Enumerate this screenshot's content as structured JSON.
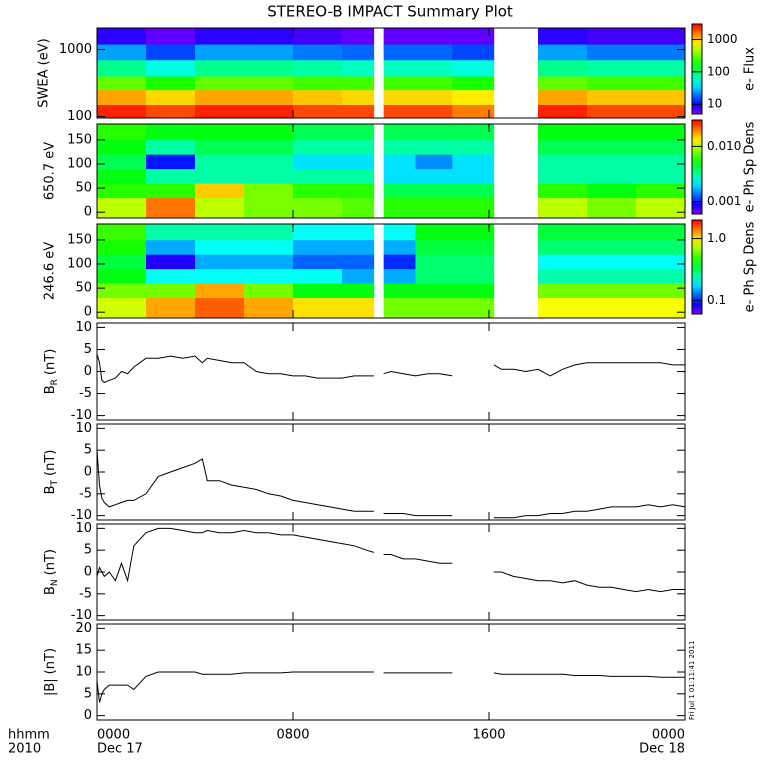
{
  "chart_data": {
    "title": "STEREO-B IMPACT Summary Plot",
    "xlim": [
      0,
      24
    ],
    "xticks": [
      {
        "value": 0,
        "label": "0000"
      },
      {
        "value": 8,
        "label": "0800"
      },
      {
        "value": 16,
        "label": "1600"
      },
      {
        "value": 24,
        "label": "0000"
      }
    ],
    "dates": [
      {
        "value": 0,
        "label": "Dec 17"
      },
      {
        "value": 24,
        "label": "Dec 18"
      }
    ],
    "time_unit": "hhmm",
    "year": "2010",
    "time_bins": [
      0,
      2,
      4,
      6,
      8,
      10,
      11.3,
      11.7,
      13,
      14.5,
      16.2,
      18,
      20,
      22,
      24
    ],
    "x": [
      0,
      0.1,
      0.2,
      0.3,
      0.5,
      0.75,
      1,
      1.25,
      1.5,
      2,
      2.5,
      3,
      3.5,
      4,
      4.3,
      4.5,
      5,
      5.5,
      6,
      6.5,
      7,
      7.5,
      8,
      8.5,
      9,
      9.5,
      10,
      10.5,
      11,
      11.3,
      11.5,
      11.7,
      12,
      12.5,
      13,
      13.5,
      14,
      14.5,
      15.3,
      16.2,
      16.5,
      17,
      17.5,
      18,
      18.5,
      19,
      19.5,
      20,
      20.5,
      21,
      21.5,
      22,
      22.5,
      23,
      23.5,
      24
    ],
    "panels": [
      {
        "type": "heatmap",
        "ylabel": "SWEA (eV)",
        "log": true,
        "ylim": [
          95,
          2100
        ],
        "yticks": [
          100,
          1000
        ],
        "y_bins": [
          95,
          150,
          250,
          400,
          700,
          1200,
          2100
        ],
        "zlabel": "e- Flux",
        "zlim": [
          5,
          3000
        ],
        "zticks": [
          10,
          100,
          1000
        ],
        "z": [
          [
            2500,
            2000,
            2500,
            2500,
            2000,
            2000,
            null,
            2000,
            2000,
            1500,
            null,
            2500,
            2000,
            2000
          ],
          [
            1200,
            900,
            1200,
            1200,
            1000,
            900,
            null,
            900,
            900,
            800,
            null,
            1200,
            1000,
            1000
          ],
          [
            300,
            200,
            300,
            300,
            250,
            250,
            null,
            250,
            250,
            200,
            null,
            300,
            250,
            250
          ],
          [
            80,
            50,
            80,
            80,
            70,
            60,
            null,
            60,
            60,
            50,
            null,
            80,
            70,
            70
          ],
          [
            25,
            15,
            25,
            25,
            20,
            18,
            null,
            18,
            18,
            15,
            null,
            25,
            20,
            20
          ],
          [
            8,
            6,
            8,
            8,
            7,
            6,
            null,
            6,
            6,
            6,
            null,
            8,
            7,
            7
          ]
        ]
      },
      {
        "type": "heatmap",
        "ylabel": "650.7 eV",
        "log": false,
        "ylim": [
          -12,
          183
        ],
        "yticks": [
          0,
          50,
          100,
          150
        ],
        "y_bins": [
          -12,
          30,
          60,
          90,
          120,
          150,
          183
        ],
        "zlabel": "e- Ph Sp Dens",
        "zlim": [
          0.0006,
          0.03
        ],
        "zticks": [
          0.001,
          {
            "value": 0.01,
            "label": "0.010"
          }
        ],
        "z": [
          [
            0.01,
            0.02,
            0.01,
            0.008,
            0.008,
            0.007,
            null,
            0.006,
            0.006,
            0.006,
            null,
            0.01,
            0.008,
            0.01
          ],
          [
            0.006,
            0.006,
            0.015,
            0.008,
            0.006,
            0.006,
            null,
            0.004,
            0.004,
            0.004,
            null,
            0.006,
            0.005,
            0.006
          ],
          [
            0.005,
            0.003,
            0.003,
            0.003,
            0.003,
            0.003,
            null,
            0.002,
            0.002,
            0.002,
            null,
            0.003,
            0.003,
            0.003
          ],
          [
            0.004,
            0.001,
            0.003,
            0.003,
            0.002,
            0.002,
            null,
            0.002,
            0.0015,
            0.002,
            null,
            0.003,
            0.003,
            0.003
          ],
          [
            0.005,
            0.003,
            0.004,
            0.004,
            0.003,
            0.003,
            null,
            0.003,
            0.003,
            0.003,
            null,
            0.004,
            0.004,
            0.004
          ],
          [
            0.006,
            0.005,
            0.005,
            0.005,
            0.004,
            0.004,
            null,
            0.004,
            0.004,
            0.004,
            null,
            0.005,
            0.005,
            0.005
          ]
        ]
      },
      {
        "type": "heatmap",
        "ylabel": "246.6 eV",
        "log": false,
        "ylim": [
          -12,
          183
        ],
        "yticks": [
          0,
          50,
          100,
          150
        ],
        "y_bins": [
          -12,
          30,
          60,
          90,
          120,
          150,
          183
        ],
        "zlabel": "e- Ph Sp Dens",
        "zlim": [
          0.06,
          2
        ],
        "zticks": [
          0.1,
          {
            "value": 1,
            "label": "1.0"
          }
        ],
        "z": [
          [
            0.8,
            1.2,
            1.5,
            1.2,
            1,
            1,
            null,
            0.6,
            0.6,
            0.6,
            null,
            0.9,
            0.9,
            0.9
          ],
          [
            0.6,
            0.6,
            1.2,
            0.6,
            0.4,
            0.4,
            null,
            0.4,
            0.4,
            0.4,
            null,
            0.6,
            0.6,
            0.6
          ],
          [
            0.4,
            0.2,
            0.2,
            0.2,
            0.2,
            0.15,
            null,
            0.15,
            0.3,
            0.3,
            null,
            0.25,
            0.25,
            0.25
          ],
          [
            0.35,
            0.08,
            0.15,
            0.15,
            0.12,
            0.12,
            null,
            0.1,
            0.3,
            0.3,
            null,
            0.2,
            0.2,
            0.2
          ],
          [
            0.45,
            0.15,
            0.2,
            0.2,
            0.15,
            0.15,
            null,
            0.15,
            0.35,
            0.35,
            null,
            0.3,
            0.3,
            0.3
          ],
          [
            0.5,
            0.25,
            0.25,
            0.25,
            0.2,
            0.2,
            null,
            0.2,
            0.4,
            0.4,
            null,
            0.35,
            0.35,
            0.35
          ]
        ]
      },
      {
        "type": "line",
        "name": "B",
        "sub": "R",
        "unit": "(nT)",
        "color": "#000000",
        "ylim": [
          -11,
          11
        ],
        "yticks": [
          -10,
          -5,
          0,
          5,
          10
        ],
        "values": [
          4,
          2,
          -2,
          -2.5,
          -2,
          -1.5,
          0,
          -0.5,
          1,
          3,
          3,
          3.5,
          3,
          3.5,
          2,
          3,
          2.5,
          2,
          2,
          0,
          -0.5,
          -0.5,
          -1,
          -1,
          -1.5,
          -1.5,
          -1.5,
          -1,
          -1,
          -1,
          null,
          -0.5,
          0,
          -0.5,
          -1,
          -0.5,
          -0.5,
          -1,
          null,
          1.5,
          0.5,
          0.5,
          0,
          0.5,
          -1,
          0.5,
          1.5,
          2,
          2,
          2,
          2,
          2,
          2,
          2,
          1.5,
          1.5
        ]
      },
      {
        "type": "line",
        "name": "B",
        "sub": "T",
        "unit": "(nT)",
        "color": "#000000",
        "ylim": [
          -11,
          11
        ],
        "yticks": [
          -10,
          -5,
          0,
          5,
          10
        ],
        "values": [
          5,
          -3,
          -6,
          -7,
          -8,
          -7.5,
          -7,
          -6.5,
          -6.5,
          -5,
          -1,
          0,
          1,
          2,
          3,
          -2,
          -2,
          -3,
          -3.5,
          -4,
          -5,
          -5.5,
          -6.5,
          -7,
          -7.5,
          -8,
          -8.5,
          -9,
          -9,
          -9,
          null,
          -9.5,
          -9.5,
          -9.5,
          -10,
          -10,
          -10,
          -10,
          null,
          -10.5,
          -10.5,
          -10.5,
          -10,
          -10,
          -9.5,
          -9.5,
          -9,
          -9,
          -8.5,
          -8,
          -8,
          -8,
          -7.5,
          -8,
          -7.5,
          -8
        ]
      },
      {
        "type": "line",
        "name": "B",
        "sub": "N",
        "unit": "(nT)",
        "color": "#000000",
        "ylim": [
          -11,
          11
        ],
        "yticks": [
          -10,
          -5,
          0,
          5,
          10
        ],
        "values": [
          -1,
          1,
          0,
          -1,
          0,
          -2,
          2,
          -2,
          6,
          9,
          10,
          10,
          9.5,
          9,
          9,
          9.5,
          9,
          9,
          9.5,
          9,
          9,
          8.5,
          8.5,
          8,
          7.5,
          7,
          6.5,
          6,
          5,
          4.5,
          null,
          4,
          4,
          3,
          3,
          2.5,
          2,
          2,
          null,
          0,
          0,
          -1,
          -1.5,
          -2,
          -2,
          -2.5,
          -2,
          -3,
          -3.5,
          -3.5,
          -4,
          -4.5,
          -4,
          -4.5,
          -4,
          -4
        ]
      },
      {
        "type": "line",
        "name": "|B|",
        "sub": "",
        "unit": "(nT)",
        "color": "#000000",
        "ylim": [
          -1,
          21
        ],
        "yticks": [
          0,
          5,
          10,
          15,
          20
        ],
        "values": [
          8,
          3,
          5,
          6,
          7,
          7,
          7,
          7,
          6,
          9,
          10,
          10,
          10,
          10,
          9.5,
          9.5,
          9.5,
          9.5,
          9.8,
          9.8,
          9.8,
          9.8,
          10,
          10,
          10,
          10,
          10,
          10,
          10,
          10,
          null,
          9.8,
          9.8,
          9.8,
          9.8,
          9.8,
          9.8,
          9.8,
          null,
          9.8,
          9.5,
          9.5,
          9.5,
          9.5,
          9.5,
          9.5,
          9.2,
          9.2,
          9.2,
          9,
          9,
          9,
          9,
          8.8,
          8.8,
          8.8
        ]
      }
    ]
  },
  "timestamp": "Fri Jul  1 01:11:41 2011"
}
